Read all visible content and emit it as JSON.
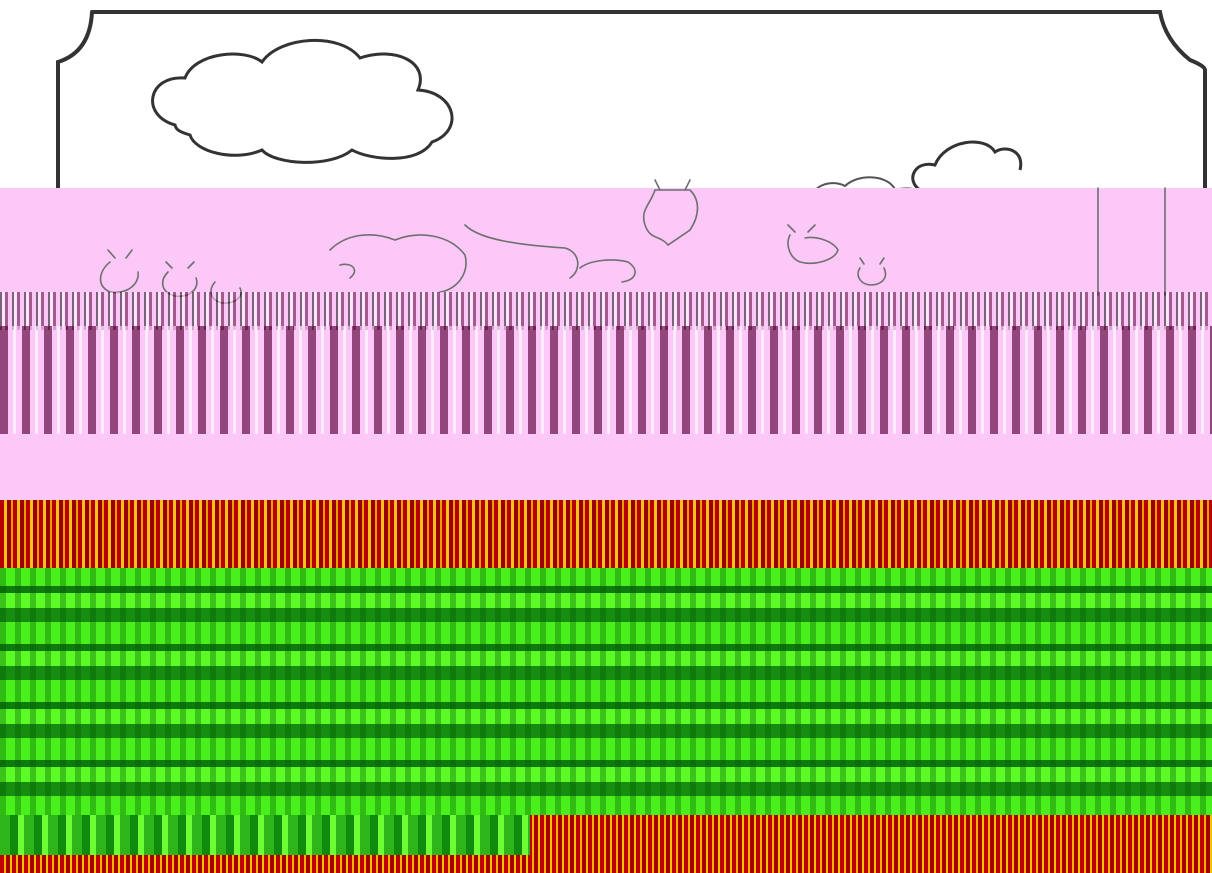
{
  "scene": {
    "subject": "",
    "colors": {
      "line": "#333333",
      "sky": "#ffffff",
      "artifact_pink": "#fbc8f7",
      "artifact_dark": "#5a0038",
      "artifact_red": "#b80000",
      "artifact_yellow": "#f7c21a",
      "artifact_green": "#49f01b",
      "artifact_green_dark": "#168d10"
    },
    "icons": [
      "frame-icon",
      "cloud-icon",
      "goat-icon"
    ]
  }
}
